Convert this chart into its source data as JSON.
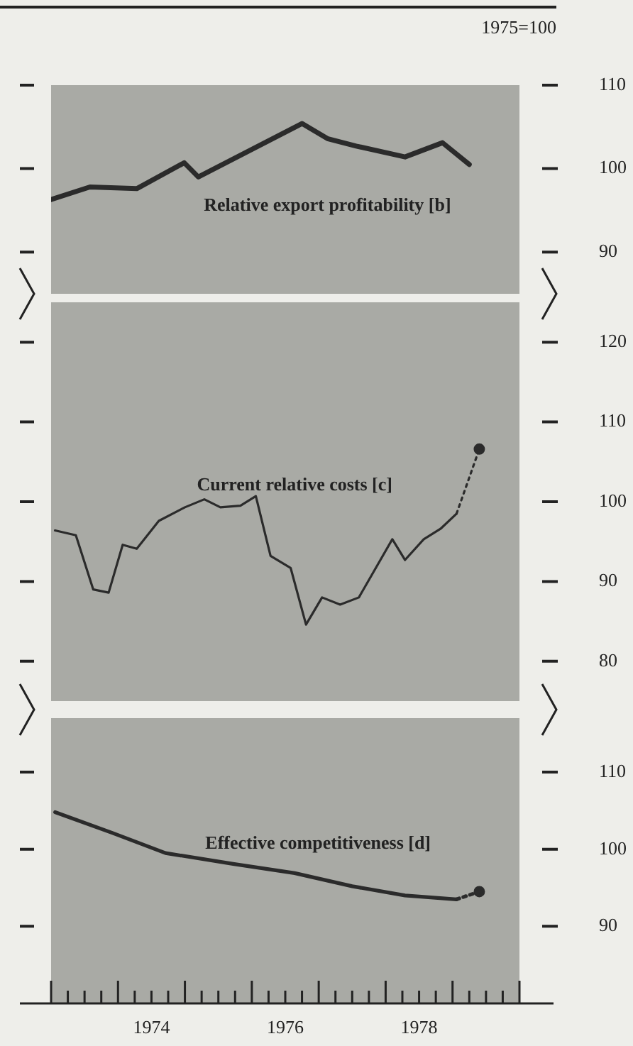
{
  "chart_data": [
    {
      "type": "line",
      "annotations": [
        "1975=100"
      ],
      "xlim": [
        1973,
        1980
      ],
      "ylim": [
        85,
        110
      ],
      "yticks": [
        90,
        100,
        110
      ],
      "tick_labels": "y",
      "series": [
        {
          "name": "Relative export profitability [b]",
          "color": "#2b2b2b",
          "x": [
            1973.0,
            1973.58,
            1974.28,
            1974.99,
            1975.2,
            1976.75,
            1977.13,
            1977.56,
            1978.29,
            1978.85,
            1979.25
          ],
          "values": [
            96.3,
            97.8,
            97.6,
            100.7,
            99.0,
            105.4,
            103.6,
            102.7,
            101.4,
            103.1,
            100.5
          ]
        }
      ]
    },
    {
      "type": "line",
      "xlim": [
        1973,
        1980
      ],
      "ylim": [
        75,
        125
      ],
      "yticks": [
        80,
        90,
        100,
        110,
        120
      ],
      "tick_labels": "y",
      "series": [
        {
          "name": "Current relative costs [c]",
          "color": "#2b2b2b",
          "x": [
            1973.06,
            1973.37,
            1973.63,
            1973.86,
            1974.07,
            1974.28,
            1974.61,
            1975.0,
            1975.29,
            1975.53,
            1975.83,
            1976.06,
            1976.28,
            1976.58,
            1976.81,
            1977.05,
            1977.32,
            1977.6,
            1978.1,
            1978.29,
            1978.57,
            1978.82,
            1979.06
          ],
          "values": [
            96.4,
            95.8,
            89.0,
            88.6,
            94.6,
            94.1,
            97.6,
            99.3,
            100.3,
            99.3,
            99.5,
            100.7,
            93.2,
            91.7,
            84.6,
            88.0,
            87.1,
            88.0,
            95.3,
            92.7,
            95.3,
            96.6,
            98.5
          ]
        },
        {
          "color": "#2b2b2b",
          "line_style": "dotted",
          "x": [
            1979.06,
            1979.4
          ],
          "values": [
            98.5,
            106.6
          ]
        },
        {
          "type": "scatter",
          "color": "#2b2b2b",
          "x": [
            1979.4
          ],
          "values": [
            106.6
          ]
        }
      ]
    },
    {
      "type": "line",
      "xlim": [
        1973,
        1980
      ],
      "ylim": [
        80,
        117
      ],
      "yticks": [
        90,
        100,
        110
      ],
      "xticks": [
        {
          "value": 1973,
          "label": null
        },
        {
          "value": 1973.25,
          "label": null
        },
        {
          "value": 1973.5,
          "label": null
        },
        {
          "value": 1973.75,
          "label": null
        },
        {
          "value": 1974,
          "label": null
        },
        {
          "value": 1974.25,
          "label": null
        },
        {
          "value": 1974.5,
          "label": "1974"
        },
        {
          "value": 1974.75,
          "label": null
        },
        {
          "value": 1975,
          "label": null
        },
        {
          "value": 1975.25,
          "label": null
        },
        {
          "value": 1975.5,
          "label": null
        },
        {
          "value": 1975.75,
          "label": null
        },
        {
          "value": 1976,
          "label": null
        },
        {
          "value": 1976.25,
          "label": null
        },
        {
          "value": 1976.5,
          "label": "1976"
        },
        {
          "value": 1976.75,
          "label": null
        },
        {
          "value": 1977,
          "label": null
        },
        {
          "value": 1977.25,
          "label": null
        },
        {
          "value": 1977.5,
          "label": null
        },
        {
          "value": 1977.75,
          "label": null
        },
        {
          "value": 1978,
          "label": null
        },
        {
          "value": 1978.25,
          "label": null
        },
        {
          "value": 1978.5,
          "label": "1978"
        },
        {
          "value": 1978.75,
          "label": null
        },
        {
          "value": 1979,
          "label": null
        },
        {
          "value": 1979.25,
          "label": null
        },
        {
          "value": 1979.5,
          "label": null
        },
        {
          "value": 1979.75,
          "label": null
        },
        {
          "value": 1980,
          "label": null
        }
      ],
      "series": [
        {
          "name": "Effective competitiveness [d]",
          "color": "#2b2b2b",
          "x": [
            1973.06,
            1973.92,
            1974.71,
            1975.72,
            1976.64,
            1977.5,
            1978.29,
            1979.06
          ],
          "values": [
            104.8,
            102.1,
            99.5,
            98.1,
            96.9,
            95.2,
            94.0,
            93.5
          ]
        },
        {
          "color": "#2b2b2b",
          "line_style": "dotted",
          "x": [
            1979.06,
            1979.4
          ],
          "values": [
            93.5,
            94.5
          ]
        },
        {
          "type": "scatter",
          "color": "#2b2b2b",
          "x": [
            1979.4
          ],
          "values": [
            94.5
          ]
        }
      ]
    }
  ]
}
